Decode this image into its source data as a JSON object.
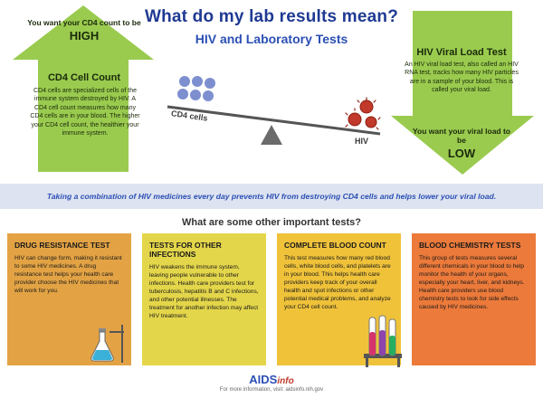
{
  "header": {
    "title": "What do my lab results mean?",
    "subtitle": "HIV and Laboratory Tests"
  },
  "cd4_panel": {
    "want_line": "You want your CD4 count to be",
    "want_value": "HIGH",
    "heading": "CD4 Cell Count",
    "body": "CD4 cells are specialized cells of the immune system destroyed by HIV. A CD4 cell count measures how many CD4 cells are in your blood. The higher your CD4 cell count, the healthier your immune system."
  },
  "viral_panel": {
    "heading": "HIV Viral Load Test",
    "body": "An HIV viral load test, also called an HIV RNA test, tracks how many HIV particles are in a sample of your blood. This is called your viral load.",
    "want_line": "You want your viral load to be",
    "want_value": "LOW"
  },
  "seesaw": {
    "left_label": "CD4 cells",
    "right_label": "HIV"
  },
  "banner": {
    "text": "Taking a combination of HIV medicines every day prevents HIV from destroying CD4 cells and helps lower your viral load."
  },
  "other_tests_heading": "What are some other important tests?",
  "cards": [
    {
      "title": "DRUG RESISTANCE TEST",
      "body": "HIV can change form, making it resistant to some HIV medicines. A drug resistance test helps your health care provider choose the HIV medicines that will work for you.",
      "color": "#e3a344"
    },
    {
      "title": "TESTS FOR OTHER INFECTIONS",
      "body": "HIV weakens the immune system, leaving people vulnerable to other infections. Health care providers test for tuberculosis, hepatitis B and C infections, and other potential illnesses. The treatment for another infection may affect HIV treatment.",
      "color": "#e4d64a"
    },
    {
      "title": "COMPLETE BLOOD COUNT",
      "body": "This test measures how many red blood cells, white blood cells, and platelets are in your blood. This helps health care providers keep track of your overall health and spot infections or other potential medical problems, and analyze your CD4 cell count.",
      "color": "#efc23a"
    },
    {
      "title": "BLOOD CHEMISTRY TESTS",
      "body": "This group of tests measures several different chemicals in your blood to help monitor the health of your organs, especially your heart, liver, and kidneys. Health care providers use blood chemistry tests to look for side effects caused by HIV medicines.",
      "color": "#ec7a3a"
    }
  ],
  "footer": {
    "logo_main": "AIDS",
    "logo_sub": "info",
    "note": "For more information, visit: aidsinfo.nih.gov"
  },
  "colors": {
    "title_blue": "#1f3a93",
    "arrow_green": "#9acb4f",
    "hiv_red": "#c0392b",
    "cd4_blue": "#7d8fcf"
  },
  "icons": [
    "up-arrow-icon",
    "down-arrow-icon",
    "seesaw-icon",
    "virus-icon",
    "flask-icon",
    "test-tubes-icon"
  ]
}
